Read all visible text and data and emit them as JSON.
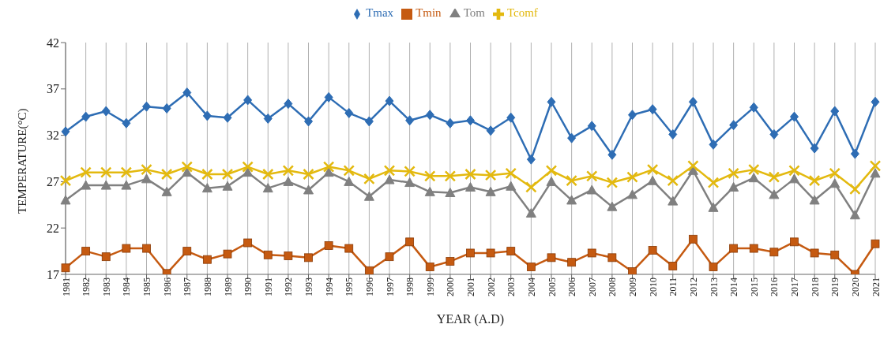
{
  "chart_data": {
    "type": "line",
    "xlabel": "YEAR (A.D)",
    "ylabel": "TEMPERATURE(°C)",
    "categories": [
      "1981",
      "1982",
      "1983",
      "1984",
      "1985",
      "1986",
      "1987",
      "1988",
      "1989",
      "1990",
      "1991",
      "1992",
      "1993",
      "1994",
      "1995",
      "1996",
      "1997",
      "1998",
      "1999",
      "2000",
      "2001",
      "2002",
      "2003",
      "2004",
      "2005",
      "2006",
      "2007",
      "2008",
      "2009",
      "2010",
      "2011",
      "2012",
      "2013",
      "2014",
      "2015",
      "2016",
      "2017",
      "2018",
      "2019",
      "2020",
      "2021"
    ],
    "series": [
      {
        "name": "Tmax",
        "color": "#2e6db4",
        "marker": "diamond",
        "values": [
          32.4,
          34.0,
          34.6,
          33.3,
          35.1,
          34.9,
          36.6,
          34.1,
          33.9,
          35.8,
          33.8,
          35.4,
          33.5,
          36.1,
          34.4,
          33.5,
          35.7,
          33.6,
          34.2,
          33.3,
          33.6,
          32.5,
          33.9,
          29.4,
          35.6,
          31.7,
          33.0,
          29.9,
          34.2,
          34.8,
          32.1,
          35.6,
          31.0,
          33.1,
          35.0,
          32.1,
          34.0,
          30.6,
          34.6,
          30.0,
          35.6
        ]
      },
      {
        "name": "Tmin",
        "color": "#c55a11",
        "marker": "square",
        "values": [
          17.7,
          19.5,
          18.9,
          19.8,
          19.8,
          17.1,
          19.5,
          18.6,
          19.2,
          20.4,
          19.1,
          19.0,
          18.8,
          20.1,
          19.8,
          17.4,
          18.9,
          20.5,
          17.8,
          18.4,
          19.3,
          19.3,
          19.5,
          17.8,
          18.8,
          18.3,
          19.3,
          18.8,
          17.3,
          19.6,
          17.9,
          20.8,
          17.8,
          19.8,
          19.8,
          19.4,
          20.5,
          19.3,
          19.1,
          17.0,
          20.3
        ]
      },
      {
        "name": "Tom",
        "color": "#808080",
        "marker": "triangle",
        "values": [
          25.0,
          26.6,
          26.6,
          26.6,
          27.3,
          25.9,
          28.0,
          26.3,
          26.5,
          28.0,
          26.3,
          27.0,
          26.1,
          28.0,
          27.0,
          25.4,
          27.2,
          26.9,
          25.9,
          25.8,
          26.4,
          25.9,
          26.5,
          23.6,
          27.0,
          25.0,
          26.1,
          24.3,
          25.6,
          27.1,
          24.9,
          28.2,
          24.2,
          26.4,
          27.4,
          25.6,
          27.3,
          25.0,
          26.8,
          23.4,
          27.9
        ]
      },
      {
        "name": "Tcomf",
        "color": "#e3b90f",
        "marker": "cross",
        "values": [
          27.1,
          28.0,
          28.0,
          28.0,
          28.3,
          27.8,
          28.6,
          27.8,
          27.8,
          28.6,
          27.8,
          28.2,
          27.8,
          28.6,
          28.2,
          27.3,
          28.2,
          28.1,
          27.6,
          27.6,
          27.8,
          27.7,
          27.9,
          26.4,
          28.2,
          27.1,
          27.6,
          26.9,
          27.5,
          28.3,
          27.1,
          28.7,
          26.9,
          27.9,
          28.3,
          27.5,
          28.2,
          27.1,
          27.9,
          26.2,
          28.7
        ]
      }
    ],
    "ylim": [
      17,
      42
    ],
    "yticks": [
      17,
      22,
      27,
      32,
      37,
      42
    ],
    "grid": "x",
    "legend": "top",
    "line_style": "solid"
  }
}
